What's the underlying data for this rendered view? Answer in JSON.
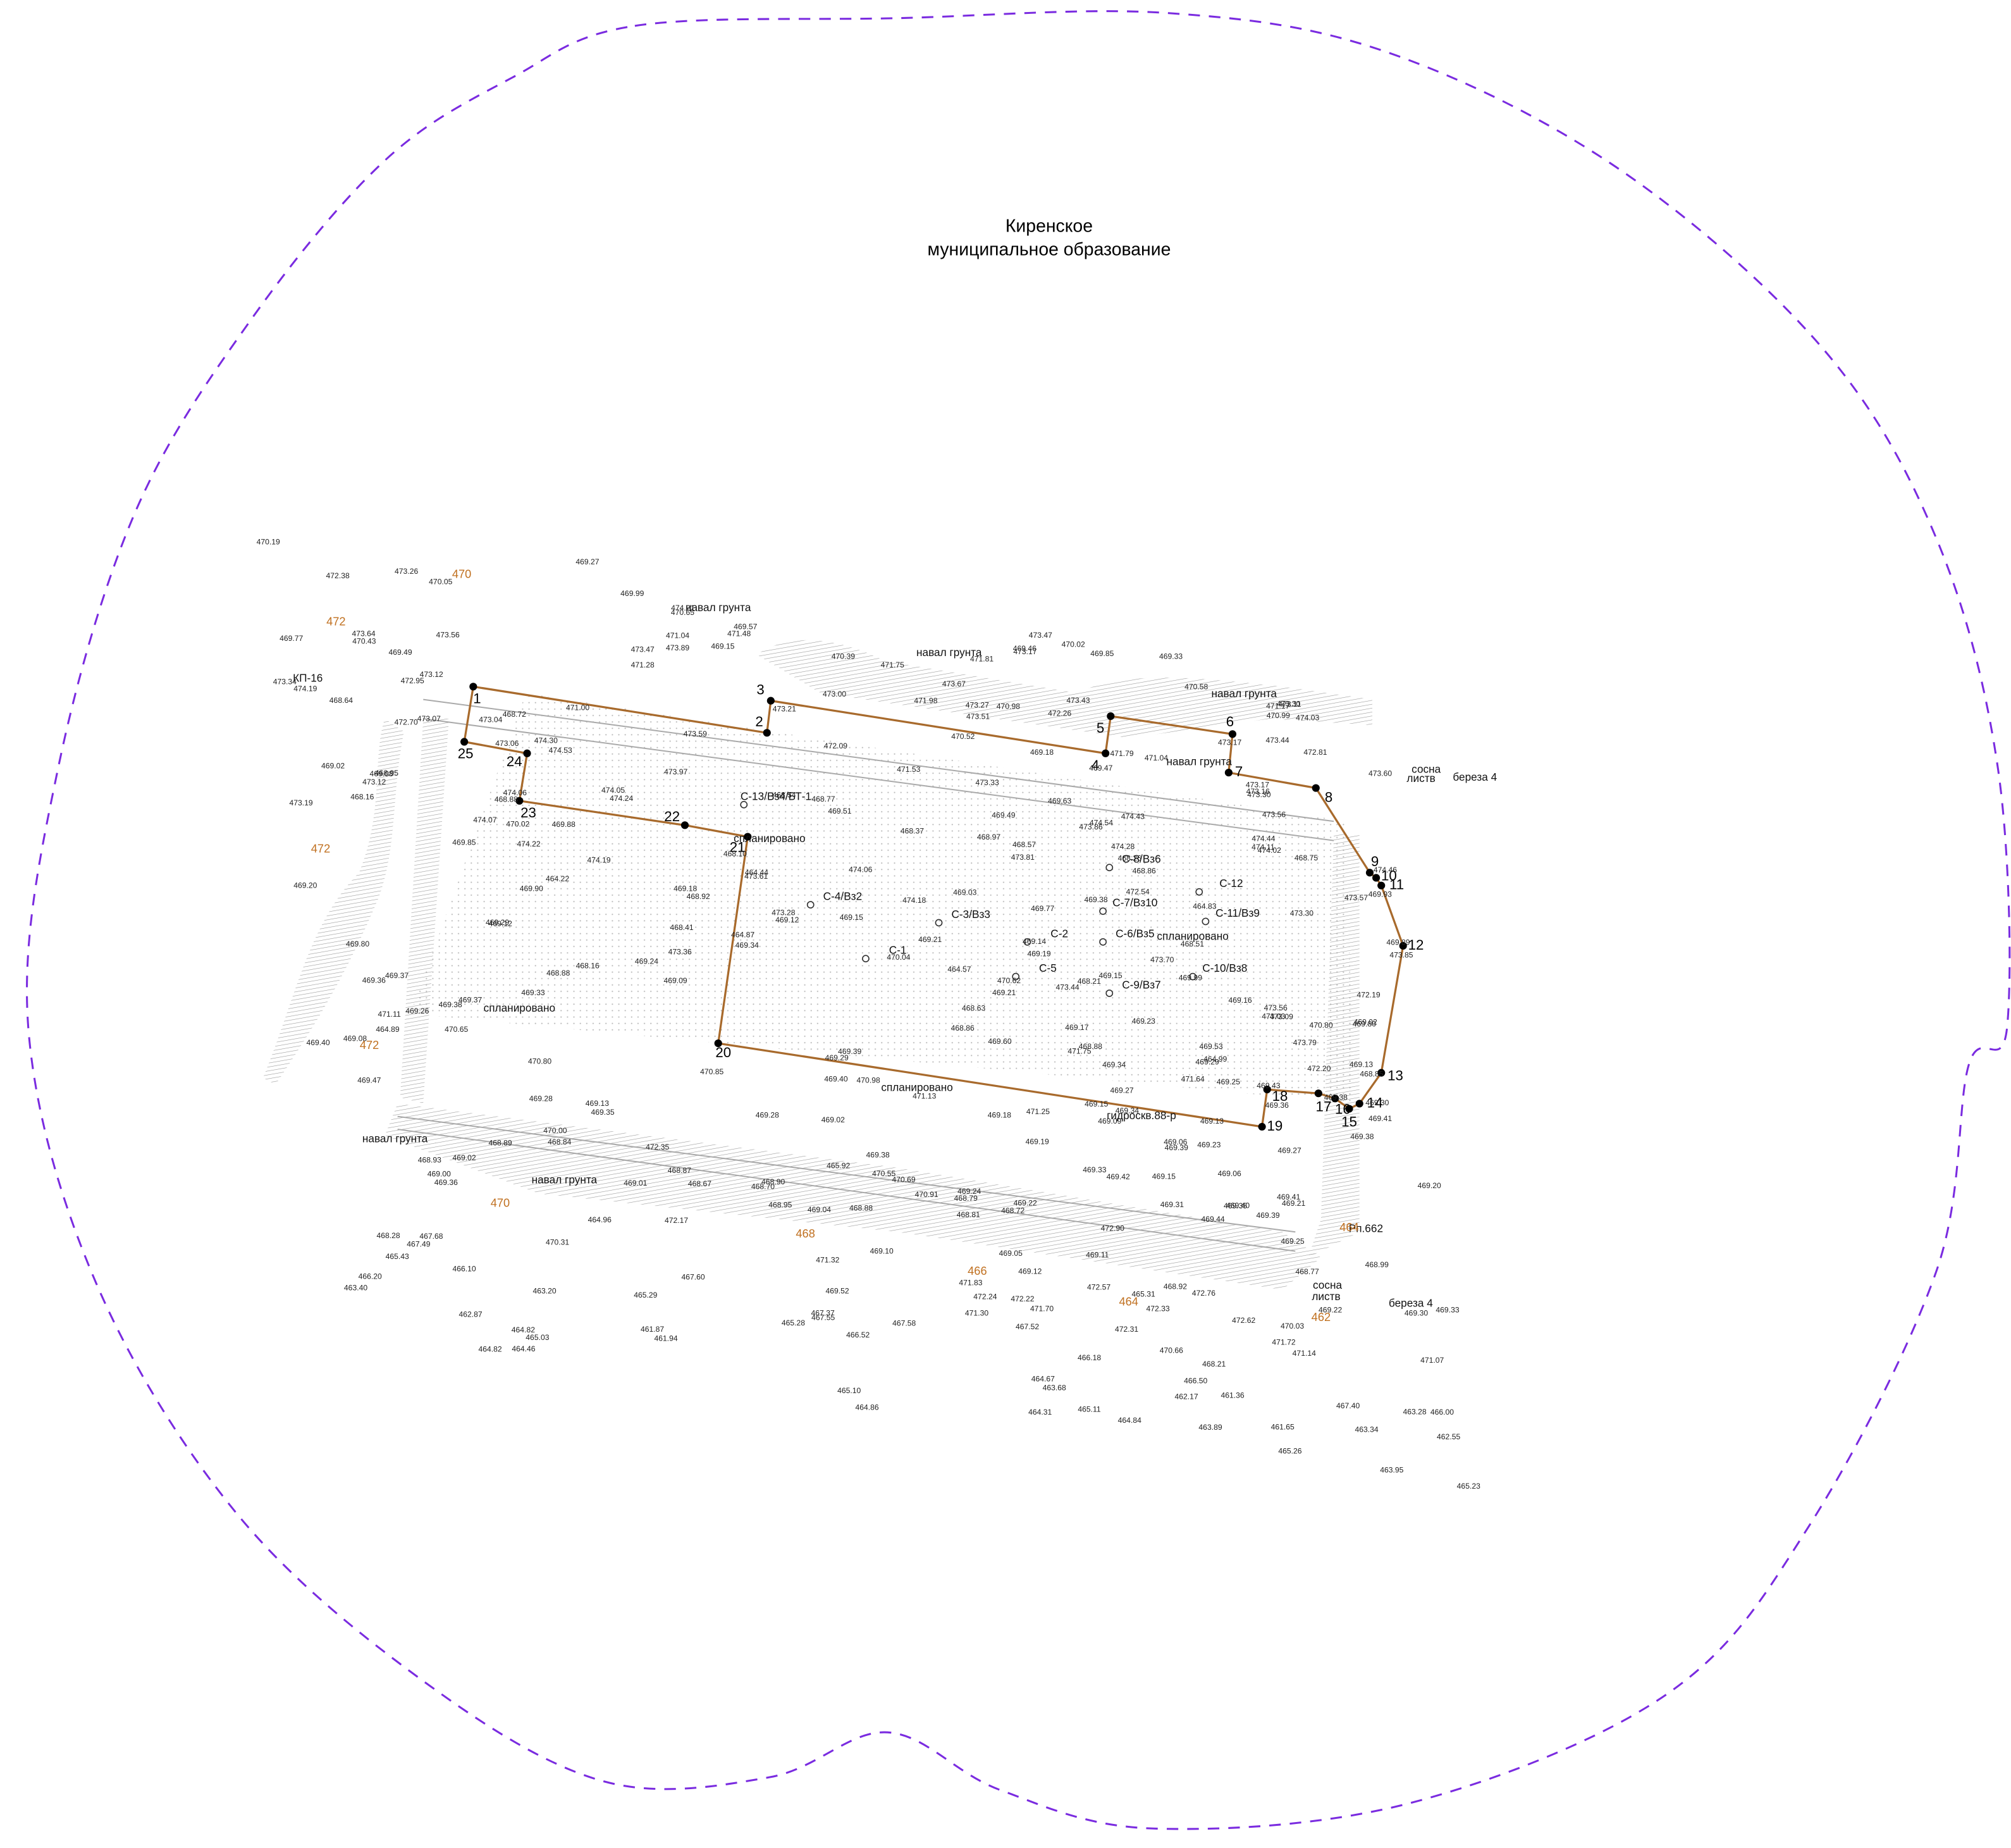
{
  "title": [
    "Киренское",
    "муниципальное образование"
  ],
  "points": [
    "1",
    "2",
    "3",
    "4",
    "5",
    "6",
    "7",
    "8",
    "9",
    "10",
    "11",
    "12",
    "13",
    "14",
    "15",
    "16",
    "17",
    "18",
    "19",
    "20",
    "21",
    "22",
    "23",
    "24",
    "25"
  ],
  "annotations": [
    "навал грунта",
    "навал грунта",
    "навал грунта",
    "навал грунта",
    "навал грунта",
    "навал грунта",
    "спланировано",
    "спланировано",
    "спланировано",
    "спланировано",
    "КП-16",
    "сосна",
    "листв",
    "береза 4",
    "сосна",
    "листв",
    "береза 4",
    "гидроскв.88-р",
    "Рп.662"
  ],
  "wells": [
    "С-13/Вз4/БТ-1",
    "С-4/Вз2",
    "С-3/Вз3",
    "С-8/Вз6",
    "С-7/Вз10",
    "С-6/Вз5",
    "С-11/Вз9",
    "С-10/Вз8",
    "С-9/Вз7",
    "С-5",
    "С-2",
    "С-1",
    "С-12"
  ],
  "contours": [
    "470",
    "472",
    "472",
    "472",
    "470",
    "468",
    "466",
    "464",
    "462",
    "464"
  ],
  "elevations": [
    "470.19",
    "469.27",
    "470.02",
    "469.99",
    "469.85",
    "469.46",
    "469.33",
    "474.21",
    "473.47",
    "473.17",
    "473.30",
    "473.26",
    "473.11",
    "471.81",
    "470.99",
    "470.65",
    "470.58",
    "470.05",
    "469.57",
    "474.03",
    "473.43",
    "472.38",
    "471.75",
    "471.48",
    "471.17",
    "471.04",
    "470.98",
    "470.39",
    "469.15",
    "473.89",
    "473.47",
    "473.67",
    "473.44",
    "473.17",
    "473.27",
    "473.00",
    "472.81",
    "472.26",
    "471.98",
    "471.28",
    "471.04",
    "469.49",
    "473.64",
    "473.56",
    "473.60",
    "473.51",
    "473.21",
    "473.12",
    "473.16",
    "473.30",
    "471.79",
    "469.77",
    "470.43",
    "470.52",
    "469.47",
    "469.18",
    "473.17",
    "473.59",
    "472.95",
    "473.34",
    "473.33",
    "474.19",
    "473.04",
    "471.53",
    "471.00",
    "468.72",
    "468.64",
    "469.63",
    "472.09",
    "472.70",
    "473.07",
    "473.56",
    "474.11",
    "474.46",
    "474.43",
    "474.53",
    "474.44",
    "474.30",
    "474.02",
    "473.97",
    "474.54",
    "473.86",
    "473.06",
    "469.93",
    "468.97",
    "468.75",
    "469.49",
    "469.51",
    "468.86",
    "468.77",
    "468.54",
    "468.57",
    "468.37",
    "468.26",
    "474.28",
    "474.24",
    "474.06",
    "474.05",
    "473.81",
    "473.12",
    "464.83",
    "473.30",
    "473.57",
    "472.54",
    "469.38",
    "469.02",
    "469.08",
    "468.95",
    "469.03",
    "468.88",
    "470.02",
    "469.88",
    "469.89",
    "469.77",
    "468.10",
    "468.16",
    "468.51",
    "469.85",
    "474.06",
    "474.22",
    "474.07",
    "474.19",
    "474.18",
    "473.85",
    "473.61",
    "473.19",
    "464.44",
    "464.22",
    "473.70",
    "473.28",
    "472.19",
    "469.14",
    "469.18",
    "469.15",
    "469.21",
    "469.19",
    "469.15",
    "469.16",
    "469.12",
    "469.02",
    "468.92",
    "468.41",
    "468.21",
    "469.80",
    "469.90",
    "469.99",
    "470.80",
    "470.62",
    "470.04",
    "473.03",
    "473.56",
    "473.44",
    "464.87",
    "464.57",
    "473.79",
    "473.36",
    "473.09",
    "469.24",
    "469.20",
    "469.34",
    "469.17",
    "469.29",
    "469.13",
    "469.12",
    "469.21",
    "469.53",
    "469.23",
    "469.09",
    "468.85",
    "468.86",
    "468.88",
    "468.63",
    "469.80",
    "468.88",
    "468.16",
    "469.60",
    "464.99",
    "472.20",
    "471.75",
    "471.64",
    "469.29",
    "469.38",
    "469.25",
    "469.36",
    "469.27",
    "469.43",
    "469.34",
    "469.38",
    "469.30",
    "469.37",
    "469.38",
    "469.41",
    "469.33",
    "469.29",
    "469.37",
    "469.39",
    "469.36",
    "469.26",
    "469.40",
    "469.34",
    "469.15",
    "469.18",
    "469.06",
    "469.09",
    "469.13",
    "464.89",
    "471.25",
    "471.13",
    "470.98",
    "471.11",
    "470.85",
    "470.80",
    "470.65",
    "469.40",
    "469.27",
    "469.39",
    "469.28",
    "469.23",
    "469.20",
    "469.19",
    "469.08",
    "469.15",
    "469.13",
    "469.06",
    "469.02",
    "469.35",
    "469.21",
    "469.38",
    "469.40",
    "469.31",
    "469.33",
    "469.42",
    "469.41",
    "469.39",
    "469.35",
    "469.44",
    "469.47",
    "469.28",
    "469.24",
    "469.22",
    "469.25",
    "470.00",
    "465.92",
    "470.91",
    "470.69",
    "470.55",
    "472.90",
    "472.35",
    "468.72",
    "468.99",
    "468.87",
    "468.81",
    "468.79",
    "468.84",
    "468.67",
    "468.77",
    "468.70",
    "468.90",
    "468.89",
    "468.88",
    "468.93",
    "468.95",
    "469.00",
    "469.01",
    "469.02",
    "469.04",
    "469.05",
    "468.92",
    "469.10",
    "469.11",
    "469.12",
    "469.22",
    "469.30",
    "469.33",
    "469.36",
    "470.03",
    "465.31",
    "464.96",
    "472.76",
    "472.62",
    "472.24",
    "472.17",
    "472.33",
    "472.22",
    "472.57",
    "472.31",
    "471.72",
    "471.83",
    "471.70",
    "471.32",
    "471.14",
    "471.07",
    "470.66",
    "471.30",
    "470.31",
    "469.52",
    "468.28",
    "468.21",
    "467.68",
    "467.52",
    "467.60",
    "467.49",
    "467.37",
    "467.58",
    "467.55",
    "467.40",
    "466.52",
    "466.00",
    "465.28",
    "465.43",
    "466.20",
    "466.10",
    "466.18",
    "465.29",
    "466.50",
    "464.67",
    "463.40",
    "463.34",
    "463.28",
    "463.20",
    "462.55",
    "461.87",
    "461.65",
    "461.36",
    "462.87",
    "462.17",
    "461.94",
    "463.89",
    "463.68",
    "463.95",
    "464.31",
    "464.46",
    "464.82",
    "464.84",
    "464.86",
    "465.10",
    "465.11",
    "465.03",
    "465.26",
    "465.23",
    "464.82"
  ]
}
